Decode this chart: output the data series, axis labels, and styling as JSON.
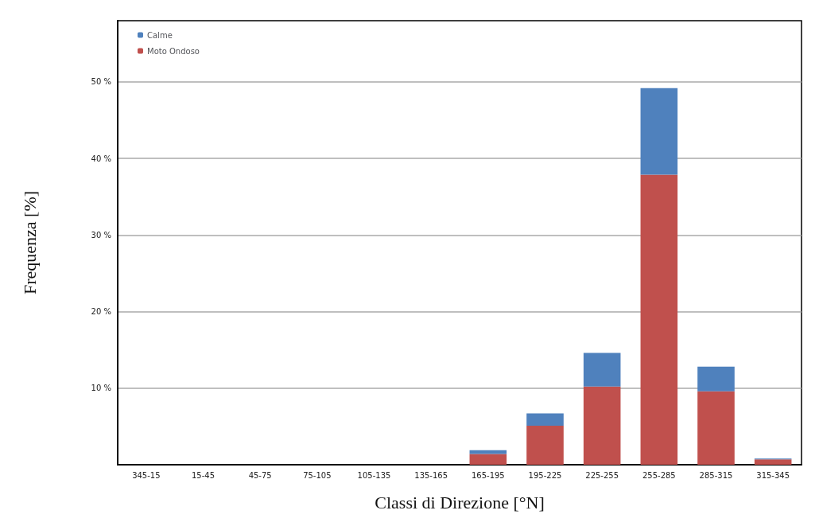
{
  "chart_data": {
    "type": "bar",
    "stacked": true,
    "xlabel": "Classi di Direzione [°N]",
    "ylabel": "Frequenza [%]",
    "categories": [
      "345-15",
      "15-45",
      "45-75",
      "75-105",
      "105-135",
      "135-165",
      "165-195",
      "195-225",
      "225-255",
      "255-285",
      "285-315",
      "315-345"
    ],
    "series": [
      {
        "name": "Moto Ondoso",
        "color": "#c0504d",
        "values": [
          0,
          0,
          0,
          0,
          0,
          0,
          1.4,
          5.1,
          10.2,
          37.9,
          9.6,
          0.7
        ]
      },
      {
        "name": "Calme",
        "color": "#4f81bd",
        "values": [
          0,
          0,
          0,
          0,
          0,
          0,
          0.5,
          1.6,
          4.4,
          11.3,
          3.2,
          0.1
        ]
      }
    ],
    "ylim": [
      0,
      58
    ],
    "yticks": [
      {
        "value": 10,
        "label": "10 %"
      },
      {
        "value": 20,
        "label": "20 %"
      },
      {
        "value": 30,
        "label": "30 %"
      },
      {
        "value": 40,
        "label": "40 %"
      },
      {
        "value": 50,
        "label": "50 %"
      }
    ],
    "grid": "y",
    "legend": "top left"
  }
}
